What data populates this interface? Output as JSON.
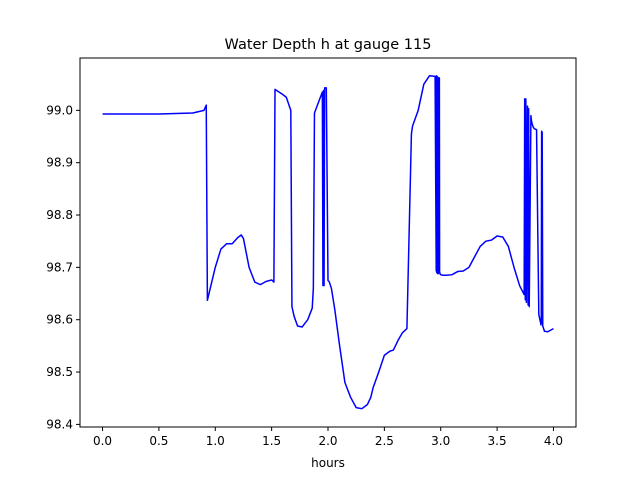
{
  "chart_data": {
    "type": "line",
    "title": "Water Depth h at gauge 115",
    "xlabel": "hours",
    "ylabel": "",
    "xlim": [
      -0.2,
      4.2
    ],
    "ylim": [
      98.395,
      99.1
    ],
    "grid": false,
    "xticks": [
      0.0,
      0.5,
      1.0,
      1.5,
      2.0,
      2.5,
      3.0,
      3.5,
      4.0
    ],
    "xtick_labels": [
      "0.0",
      "0.5",
      "1.0",
      "1.5",
      "2.0",
      "2.5",
      "3.0",
      "3.5",
      "4.0"
    ],
    "yticks": [
      98.4,
      98.5,
      98.6,
      98.7,
      98.8,
      98.9,
      99.0
    ],
    "ytick_labels": [
      "98.4",
      "98.5",
      "98.6",
      "98.7",
      "98.8",
      "98.9",
      "99.0"
    ],
    "series": [
      {
        "color": "#0000ff",
        "x": [
          0.0,
          0.5,
          0.8,
          0.9,
          0.92,
          0.93,
          1.0,
          1.05,
          1.1,
          1.15,
          1.2,
          1.23,
          1.25,
          1.3,
          1.35,
          1.4,
          1.45,
          1.5,
          1.52,
          1.53,
          1.6,
          1.63,
          1.67,
          1.68,
          1.7,
          1.73,
          1.77,
          1.82,
          1.86,
          1.87,
          1.88,
          1.95,
          1.955,
          1.96,
          1.965,
          1.97,
          1.985,
          2.0,
          2.01,
          2.03,
          2.06,
          2.1,
          2.15,
          2.2,
          2.25,
          2.3,
          2.35,
          2.38,
          2.4,
          2.45,
          2.5,
          2.55,
          2.58,
          2.62,
          2.66,
          2.7,
          2.74,
          2.75,
          2.8,
          2.85,
          2.9,
          2.95,
          2.96,
          2.962,
          2.965,
          2.968,
          2.972,
          2.975,
          2.978,
          2.982,
          2.985,
          2.988,
          2.99,
          2.992,
          2.995,
          3.0,
          3.02,
          3.05,
          3.1,
          3.15,
          3.2,
          3.25,
          3.3,
          3.35,
          3.4,
          3.45,
          3.5,
          3.55,
          3.6,
          3.65,
          3.7,
          3.74,
          3.745,
          3.75,
          3.755,
          3.76,
          3.77,
          3.775,
          3.78,
          3.785,
          3.8,
          3.805,
          3.81,
          3.82,
          3.83,
          3.85,
          3.87,
          3.88,
          3.89,
          3.892,
          3.895,
          3.9,
          3.905,
          3.91,
          3.92,
          3.95,
          4.0
        ],
        "y": [
          98.993,
          98.993,
          98.995,
          99.0,
          99.01,
          98.637,
          98.7,
          98.735,
          98.745,
          98.745,
          98.757,
          98.762,
          98.755,
          98.7,
          98.672,
          98.667,
          98.673,
          98.676,
          98.672,
          99.04,
          99.03,
          99.025,
          99.0,
          98.625,
          98.606,
          98.588,
          98.586,
          98.6,
          98.622,
          98.66,
          98.995,
          99.035,
          98.665,
          99.038,
          98.665,
          99.043,
          99.043,
          98.675,
          98.673,
          98.66,
          98.62,
          98.555,
          98.48,
          98.452,
          98.432,
          98.43,
          98.438,
          98.452,
          98.47,
          98.5,
          98.532,
          98.54,
          98.542,
          98.56,
          98.575,
          98.583,
          98.955,
          98.97,
          99.0,
          99.05,
          99.066,
          99.065,
          98.693,
          99.066,
          98.69,
          99.065,
          98.688,
          99.063,
          98.688,
          99.062,
          98.69,
          99.062,
          98.692,
          98.69,
          98.687,
          98.686,
          98.685,
          98.685,
          98.686,
          98.692,
          98.693,
          98.7,
          98.72,
          98.74,
          98.75,
          98.752,
          98.76,
          98.758,
          98.74,
          98.7,
          98.665,
          98.648,
          99.022,
          98.638,
          99.022,
          98.633,
          99.008,
          98.628,
          99.003,
          98.625,
          98.99,
          98.98,
          98.975,
          98.968,
          98.965,
          98.963,
          98.61,
          98.6,
          98.59,
          98.595,
          98.96,
          98.958,
          98.588,
          98.585,
          98.578,
          98.577,
          98.583
        ]
      }
    ]
  }
}
